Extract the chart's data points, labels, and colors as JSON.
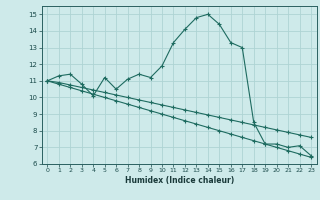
{
  "xlabel": "Humidex (Indice chaleur)",
  "ylabel": "",
  "background_color": "#ceeaea",
  "grid_color": "#aed4d4",
  "line_color": "#1e6b60",
  "xlim": [
    -0.5,
    23.5
  ],
  "ylim": [
    6,
    15.5
  ],
  "yticks": [
    6,
    7,
    8,
    9,
    10,
    11,
    12,
    13,
    14,
    15
  ],
  "xticks": [
    0,
    1,
    2,
    3,
    4,
    5,
    6,
    7,
    8,
    9,
    10,
    11,
    12,
    13,
    14,
    15,
    16,
    17,
    18,
    19,
    20,
    21,
    22,
    23
  ],
  "line1_x": [
    0,
    1,
    2,
    3,
    4,
    5,
    6,
    7,
    8,
    9,
    10,
    11,
    12,
    13,
    14,
    15,
    16,
    17,
    18,
    19,
    20,
    21,
    22,
    23
  ],
  "line1_y": [
    11.0,
    11.3,
    11.4,
    10.8,
    10.1,
    11.2,
    10.5,
    11.1,
    11.4,
    11.2,
    11.9,
    13.3,
    14.1,
    14.8,
    15.0,
    14.4,
    13.3,
    13.0,
    8.5,
    7.2,
    7.2,
    7.0,
    7.1,
    6.5
  ],
  "line2_x": [
    0,
    1,
    2,
    3,
    4,
    5,
    6,
    7,
    8,
    9,
    10,
    11,
    12,
    13,
    14,
    15,
    16,
    17,
    18,
    19,
    20,
    21,
    22,
    23
  ],
  "line2_y": [
    11.0,
    10.8,
    10.6,
    10.4,
    10.2,
    10.0,
    9.8,
    9.6,
    9.4,
    9.2,
    9.0,
    8.8,
    8.6,
    8.4,
    8.2,
    8.0,
    7.8,
    7.6,
    7.4,
    7.2,
    7.0,
    6.8,
    6.6,
    6.4
  ],
  "line3_x": [
    0,
    1,
    2,
    3,
    4,
    5,
    6,
    7,
    8,
    9,
    10,
    11,
    12,
    13,
    14,
    15,
    16,
    17,
    18,
    19,
    20,
    21,
    22,
    23
  ],
  "line3_y": [
    11.0,
    10.9,
    10.75,
    10.6,
    10.45,
    10.3,
    10.15,
    10.0,
    9.85,
    9.7,
    9.55,
    9.4,
    9.25,
    9.1,
    8.95,
    8.8,
    8.65,
    8.5,
    8.35,
    8.2,
    8.05,
    7.9,
    7.75,
    7.6
  ]
}
